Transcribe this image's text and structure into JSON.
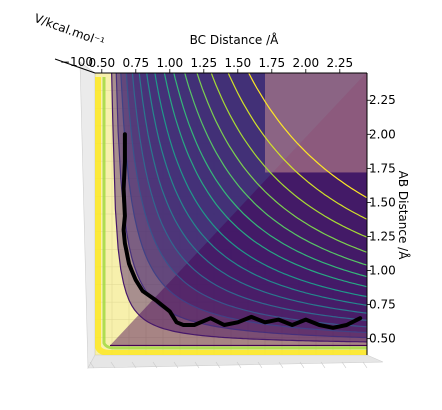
{
  "chart_data": {
    "type": "contour",
    "title": "",
    "xlabel": "BC Distance /Å",
    "ylabel": "AB Distance /Å",
    "zlabel": "V/kcal.mol⁻¹",
    "x_ticks": [
      "0.50",
      "0.75",
      "1.00",
      "1.25",
      "1.50",
      "1.75",
      "2.00",
      "2.25"
    ],
    "y_ticks": [
      "0.50",
      "0.75",
      "1.00",
      "1.25",
      "1.50",
      "1.75",
      "2.00",
      "2.25"
    ],
    "z_tick_text": "−100",
    "xlim": [
      0.45,
      2.45
    ],
    "ylim": [
      0.38,
      2.45
    ],
    "colormap": "viridis",
    "contour_levels": [
      0.04,
      0.09,
      0.15,
      0.22,
      0.3,
      0.39,
      0.49,
      0.6,
      0.72,
      0.86,
      1.0,
      1.16,
      1.34,
      1.55,
      1.8,
      2.1
    ],
    "trajectory": {
      "color": "#000000",
      "x": [
        0.67,
        0.67,
        0.66,
        0.67,
        0.66,
        0.67,
        0.68,
        0.69,
        0.7,
        0.72,
        0.75,
        0.8,
        0.9,
        1.0,
        1.05,
        1.1,
        1.18,
        1.3,
        1.4,
        1.5,
        1.6,
        1.7,
        1.8,
        1.9,
        2.0,
        2.1,
        2.2,
        2.3,
        2.4
      ],
      "y": [
        2.0,
        1.8,
        1.6,
        1.4,
        1.3,
        1.2,
        1.15,
        1.1,
        1.05,
        1.0,
        0.93,
        0.85,
        0.78,
        0.7,
        0.62,
        0.6,
        0.6,
        0.65,
        0.6,
        0.62,
        0.66,
        0.62,
        0.64,
        0.6,
        0.64,
        0.6,
        0.58,
        0.6,
        0.65
      ]
    }
  }
}
